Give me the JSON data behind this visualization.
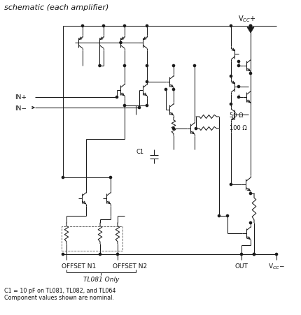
{
  "title": "schematic (each amplifier)",
  "bg_color": "#ffffff",
  "line_color": "#1a1a1a",
  "vcc_plus_label": "V$_{CC}$+",
  "vcc_minus_label": "V$_{CC}$−",
  "out_label": "OUT",
  "in_plus_label": "IN+",
  "in_minus_label": "IN−",
  "offset_n1_label": "OFFSET N1",
  "offset_n2_label": "OFFSET N2",
  "tl081_label": "TL081 Only",
  "c1_label": "C1 = 10 pF on TL081, TL082, and TL064",
  "nominal_label": "Component values shown are nominal.",
  "r50_label": "50 Ω",
  "r100_label": "100 Ω",
  "c1_sym_label": "C1"
}
